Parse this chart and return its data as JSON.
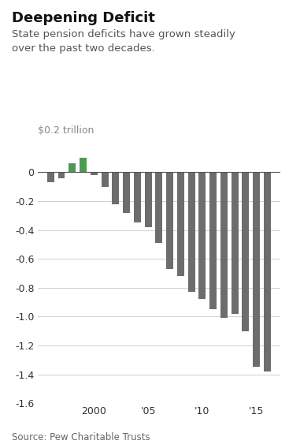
{
  "title": "Deepening Deficit",
  "subtitle": "State pension deficits have grown steadily\nover the past two decades.",
  "ylabel": "$0.2 trillion",
  "source": "Source: Pew Charitable Trusts",
  "years": [
    1996,
    1997,
    1998,
    1999,
    2000,
    2001,
    2002,
    2003,
    2004,
    2005,
    2006,
    2007,
    2008,
    2009,
    2010,
    2011,
    2012,
    2013,
    2014,
    2015,
    2016
  ],
  "values": [
    -0.07,
    -0.04,
    0.06,
    0.1,
    -0.02,
    -0.1,
    -0.22,
    -0.28,
    -0.35,
    -0.38,
    -0.49,
    -0.67,
    -0.72,
    -0.83,
    -0.88,
    -0.95,
    -1.01,
    -0.98,
    -1.1,
    -1.35,
    -1.38
  ],
  "colors": [
    "#6d6d6d",
    "#6d6d6d",
    "#4e9a51",
    "#4e9a51",
    "#6d6d6d",
    "#6d6d6d",
    "#6d6d6d",
    "#6d6d6d",
    "#6d6d6d",
    "#6d6d6d",
    "#6d6d6d",
    "#6d6d6d",
    "#6d6d6d",
    "#6d6d6d",
    "#6d6d6d",
    "#6d6d6d",
    "#6d6d6d",
    "#6d6d6d",
    "#6d6d6d",
    "#6d6d6d",
    "#6d6d6d"
  ],
  "ylim": [
    -1.6,
    0.2
  ],
  "yticks": [
    0,
    -0.2,
    -0.4,
    -0.6,
    -0.8,
    -1.0,
    -1.2,
    -1.4,
    -1.6
  ],
  "xtick_positions": [
    2000,
    2005,
    2010,
    2015
  ],
  "xtick_labels": [
    "2000",
    "'05",
    "'10",
    "'15"
  ],
  "background_color": "#ffffff",
  "grid_color": "#d0d0d0",
  "title_fontsize": 13,
  "subtitle_fontsize": 9.5,
  "axis_fontsize": 9,
  "ylabel_fontsize": 9,
  "source_fontsize": 8.5,
  "bar_width": 0.65,
  "xlim_left": 1994.8,
  "xlim_right": 2017.2
}
